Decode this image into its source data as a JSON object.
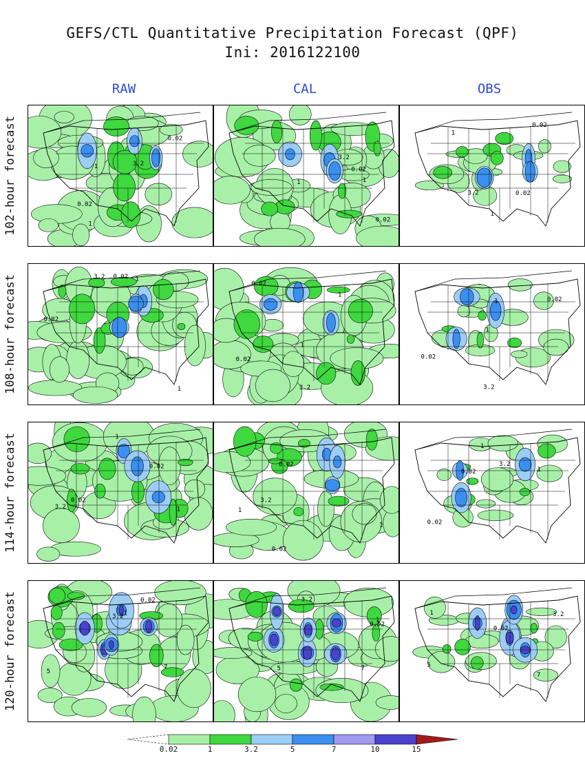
{
  "title": {
    "line1": "GEFS/CTL Quantitative Precipitation Forecast (QPF)",
    "line2": "Ini: 2016122100"
  },
  "columns": [
    "RAW",
    "CAL",
    "OBS"
  ],
  "rows": [
    "102-hour forecast",
    "108-hour forecast",
    "114-hour forecast",
    "120-hour forecast"
  ],
  "contour_labels": [
    "0.02",
    "1",
    "3.2",
    "5",
    "7"
  ],
  "legend": {
    "levels": [
      "0.02",
      "1",
      "3.2",
      "5",
      "7",
      "10",
      "15"
    ],
    "colors": [
      "#a8f0a8",
      "#3fd83f",
      "#9ccdf5",
      "#3a8ff0",
      "#a09af0",
      "#4b42d0",
      "#a01c1c"
    ]
  }
}
